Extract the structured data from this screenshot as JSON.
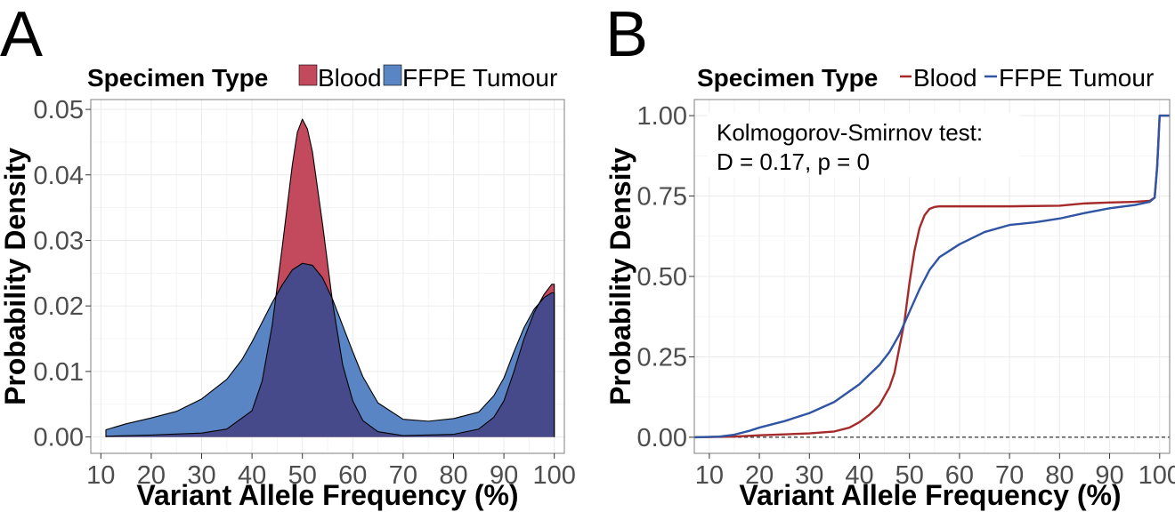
{
  "chart_data": [
    {
      "panel": "A",
      "type": "area",
      "legend": {
        "title": "Specimen Type",
        "position": "top"
      },
      "xlabel": "Variant Allele Frequency (%)",
      "ylabel": "Probability Density",
      "xlim": [
        8,
        102
      ],
      "ylim": [
        -0.0025,
        0.0515
      ],
      "xticks": [
        10,
        20,
        30,
        40,
        50,
        60,
        70,
        80,
        90,
        100
      ],
      "yticks": [
        0.0,
        0.01,
        0.02,
        0.03,
        0.04,
        0.05
      ],
      "ytick_labels": [
        "0.00",
        "0.01",
        "0.02",
        "0.03",
        "0.04",
        "0.05"
      ],
      "grid": true,
      "series": [
        {
          "name": "Blood",
          "color": "#c24a5c",
          "x": [
            11,
            20,
            30,
            35,
            40,
            42,
            44,
            46,
            48,
            49,
            50,
            51,
            52,
            54,
            56,
            58,
            60,
            62,
            65,
            70,
            80,
            85,
            88,
            90,
            92,
            94,
            96,
            98,
            99.5,
            100
          ],
          "y": [
            0.0001,
            0.0003,
            0.0006,
            0.0012,
            0.004,
            0.0085,
            0.017,
            0.029,
            0.0415,
            0.0465,
            0.0485,
            0.047,
            0.0435,
            0.0325,
            0.0205,
            0.011,
            0.0055,
            0.0025,
            0.0008,
            0.0002,
            0.0004,
            0.0012,
            0.003,
            0.0055,
            0.01,
            0.015,
            0.019,
            0.0218,
            0.0233,
            0.0233
          ]
        },
        {
          "name": "FFPE Tumour",
          "color": "#5a85c4",
          "x": [
            11,
            15,
            20,
            25,
            30,
            35,
            38,
            40,
            42,
            44,
            46,
            48,
            50,
            52,
            54,
            56,
            58,
            60,
            62,
            65,
            70,
            75,
            80,
            85,
            88,
            90,
            92,
            94,
            96,
            98,
            99.5,
            100
          ],
          "y": [
            0.0011,
            0.002,
            0.0029,
            0.0039,
            0.0058,
            0.0088,
            0.0118,
            0.0145,
            0.0175,
            0.0205,
            0.0232,
            0.0255,
            0.0265,
            0.0262,
            0.0243,
            0.021,
            0.017,
            0.013,
            0.0092,
            0.0052,
            0.0027,
            0.0024,
            0.0028,
            0.0038,
            0.0063,
            0.009,
            0.013,
            0.0167,
            0.0195,
            0.0213,
            0.022,
            0.022
          ]
        }
      ]
    },
    {
      "panel": "B",
      "type": "line",
      "legend": {
        "title": "Specimen Type",
        "position": "top"
      },
      "xlabel": "Variant Allele Frequency (%)",
      "ylabel": "Probability Density",
      "xlim": [
        7,
        102
      ],
      "ylim": [
        -0.05,
        1.05
      ],
      "xticks": [
        10,
        20,
        30,
        40,
        50,
        60,
        70,
        80,
        90,
        100
      ],
      "yticks": [
        0.0,
        0.25,
        0.5,
        0.75,
        1.0
      ],
      "ytick_labels": [
        "0.00",
        "0.25",
        "0.50",
        "0.75",
        "1.00"
      ],
      "grid": true,
      "reference_line": {
        "y": 0,
        "style": "dashed"
      },
      "annotation": [
        "Kolmogorov-Smirnov test:",
        "D = 0.17, p = 0"
      ],
      "series": [
        {
          "name": "Blood",
          "color": "#a52a2a",
          "x": [
            7,
            15,
            20,
            25,
            30,
            35,
            38,
            40,
            42,
            44,
            46,
            47,
            48,
            49,
            50,
            51,
            52,
            53,
            54,
            55,
            56,
            60,
            70,
            80,
            85,
            90,
            95,
            98,
            99,
            99.5,
            100,
            102
          ],
          "y": [
            0,
            0.002,
            0.006,
            0.009,
            0.012,
            0.018,
            0.03,
            0.047,
            0.07,
            0.1,
            0.155,
            0.2,
            0.28,
            0.36,
            0.48,
            0.58,
            0.65,
            0.69,
            0.71,
            0.716,
            0.718,
            0.718,
            0.718,
            0.72,
            0.727,
            0.73,
            0.732,
            0.735,
            0.745,
            0.84,
            1.0,
            1.0
          ]
        },
        {
          "name": "FFPE Tumour",
          "color": "#2f55a4",
          "x": [
            7,
            12,
            15,
            18,
            20,
            25,
            30,
            35,
            40,
            44,
            46,
            48,
            50,
            52,
            54,
            56,
            58,
            60,
            65,
            70,
            75,
            80,
            85,
            90,
            95,
            98,
            99,
            99.5,
            100,
            102
          ],
          "y": [
            0,
            0.002,
            0.008,
            0.02,
            0.03,
            0.05,
            0.075,
            0.11,
            0.165,
            0.225,
            0.265,
            0.32,
            0.39,
            0.46,
            0.52,
            0.56,
            0.58,
            0.6,
            0.638,
            0.66,
            0.668,
            0.68,
            0.697,
            0.712,
            0.722,
            0.732,
            0.745,
            0.84,
            1.0,
            1.0
          ]
        }
      ]
    }
  ]
}
